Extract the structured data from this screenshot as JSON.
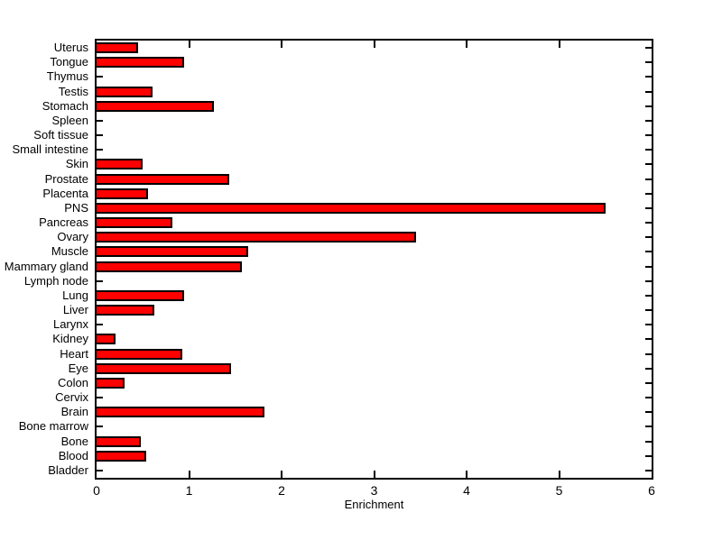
{
  "figure": {
    "background_color": "#FFFFFF",
    "axis_color": "#000000",
    "text_color": "#000000"
  },
  "chart_data": {
    "type": "bar",
    "orientation": "horizontal",
    "title": "",
    "xlabel": "Enrichment",
    "ylabel": "",
    "xlim": [
      0,
      6
    ],
    "xticks": [
      0,
      1,
      2,
      3,
      4,
      5,
      6
    ],
    "grid": false,
    "legend": null,
    "bar_color": "#FF0000",
    "bar_edge_color": "#000000",
    "categories_top_to_bottom": [
      "Uterus",
      "Tongue",
      "Thymus",
      "Testis",
      "Stomach",
      "Spleen",
      "Soft tissue",
      "Small intestine",
      "Skin",
      "Prostate",
      "Placenta",
      "PNS",
      "Pancreas",
      "Ovary",
      "Muscle",
      "Mammary gland",
      "Lymph node",
      "Lung",
      "Liver",
      "Larynx",
      "Kidney",
      "Heart",
      "Eye",
      "Colon",
      "Cervix",
      "Brain",
      "Bone marrow",
      "Bone",
      "Blood",
      "Bladder"
    ],
    "values": [
      0.45,
      0.95,
      0,
      0.6,
      1.27,
      0,
      0,
      0,
      0.5,
      1.43,
      0.56,
      5.5,
      0.82,
      3.45,
      1.64,
      1.57,
      0,
      0.95,
      0.62,
      0,
      0.2,
      0.93,
      1.45,
      0.3,
      0,
      1.81,
      0,
      0.48,
      0.54,
      0
    ]
  }
}
